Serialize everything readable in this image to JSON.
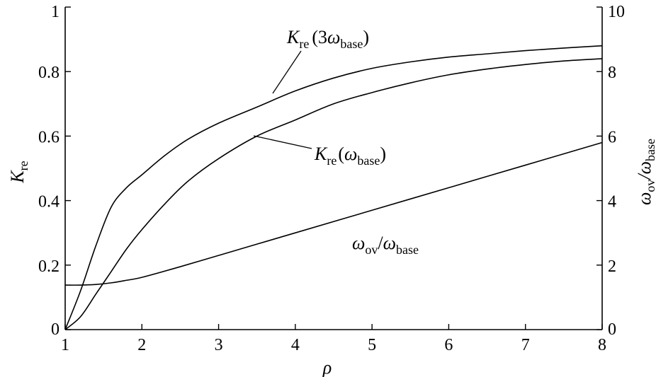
{
  "chart_data": {
    "type": "line",
    "xlabel": "ρ",
    "ylabel_left": {
      "main": "K",
      "sub": "re"
    },
    "ylabel_right": {
      "num": "ω",
      "num_sub": "ov",
      "den": "ω",
      "den_sub": "base"
    },
    "xlim": [
      1,
      8
    ],
    "ylim_left": [
      0,
      1
    ],
    "ylim_right": [
      0,
      10
    ],
    "x_ticks": [
      "1",
      "2",
      "3",
      "4",
      "5",
      "6",
      "7",
      "8"
    ],
    "y_ticks_left": [
      "0",
      "0.2",
      "0.4",
      "0.6",
      "0.8",
      "1"
    ],
    "y_ticks_right": [
      "0",
      "2",
      "4",
      "6",
      "8",
      "10"
    ],
    "grid": false,
    "series": [
      {
        "name": "K_re(3ω_base)",
        "axis": "left",
        "x": [
          1,
          1.2,
          1.4,
          1.6,
          1.8,
          2,
          2.3,
          2.6,
          3,
          3.5,
          4,
          4.5,
          5,
          5.5,
          6,
          6.5,
          7,
          7.5,
          8
        ],
        "y": [
          0,
          0.12,
          0.26,
          0.38,
          0.44,
          0.48,
          0.54,
          0.59,
          0.64,
          0.69,
          0.74,
          0.78,
          0.81,
          0.83,
          0.845,
          0.855,
          0.865,
          0.873,
          0.88
        ]
      },
      {
        "name": "K_re(ω_base)",
        "axis": "left",
        "x": [
          1,
          1.2,
          1.4,
          1.6,
          1.8,
          2,
          2.3,
          2.6,
          3,
          3.5,
          4,
          4.5,
          5,
          5.5,
          6,
          6.5,
          7,
          7.5,
          8
        ],
        "y": [
          0,
          0.04,
          0.11,
          0.18,
          0.25,
          0.31,
          0.39,
          0.46,
          0.53,
          0.6,
          0.65,
          0.7,
          0.735,
          0.765,
          0.79,
          0.808,
          0.822,
          0.833,
          0.84
        ]
      },
      {
        "name": "ω_ov/ω_base",
        "axis": "right",
        "x": [
          1,
          1.2,
          1.4,
          1.6,
          1.8,
          2,
          2.5,
          3,
          3.5,
          4,
          5,
          6,
          7,
          8
        ],
        "y": [
          1.38,
          1.38,
          1.4,
          1.45,
          1.53,
          1.62,
          1.95,
          2.3,
          2.65,
          3.0,
          3.7,
          4.4,
          5.1,
          5.8
        ]
      }
    ],
    "annotations": {
      "k3": {
        "main": "K",
        "sub": "re",
        "open": "(3",
        "w": "ω",
        "wsub": "base",
        "close": ")"
      },
      "k1": {
        "main": "K",
        "sub": "re",
        "open": "(",
        "w": "ω",
        "wsub": "base",
        "close": ")"
      },
      "ratio": {
        "num": "ω",
        "num_sub": "ov",
        "slash": "/",
        "den": "ω",
        "den_sub": "base"
      }
    }
  }
}
